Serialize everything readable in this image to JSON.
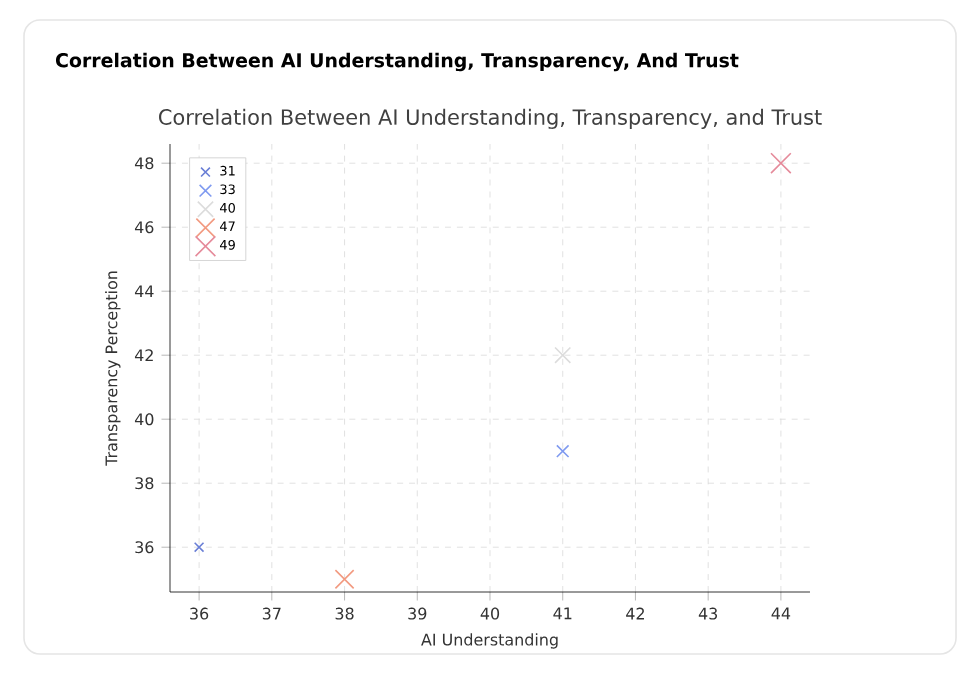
{
  "chart_data": {
    "type": "bubble",
    "title": "Correlation Between AI Understanding, Transparency, And Trust",
    "subtitle": "Correlation Between AI Understanding, Transparency, and Trust",
    "xlabel": "AI Understanding",
    "ylabel": "Transparency Perception",
    "xlim": [
      35.6,
      44.4
    ],
    "ylim": [
      34.6,
      48.6
    ],
    "xticks": [
      36,
      37,
      38,
      39,
      40,
      41,
      42,
      43,
      44
    ],
    "yticks": [
      36,
      38,
      40,
      42,
      44,
      46,
      48
    ],
    "grid": true,
    "legend": "top left",
    "marker": "cross",
    "series": [
      {
        "name": "31",
        "color": "#6a7fd6",
        "x": [
          36
        ],
        "values": [
          36
        ],
        "sizes": [
          0.2
        ]
      },
      {
        "name": "33",
        "color": "#7f9af0",
        "x": [
          41
        ],
        "values": [
          39
        ],
        "sizes": [
          0.35
        ]
      },
      {
        "name": "40",
        "color": "#dcdcdc",
        "x": [
          41
        ],
        "values": [
          42
        ],
        "sizes": [
          0.6
        ]
      },
      {
        "name": "47",
        "color": "#f29a80",
        "x": [
          38
        ],
        "values": [
          35
        ],
        "sizes": [
          0.85
        ]
      },
      {
        "name": "49",
        "color": "#e58a9a",
        "x": [
          44
        ],
        "values": [
          48
        ],
        "sizes": [
          1
        ]
      }
    ]
  }
}
